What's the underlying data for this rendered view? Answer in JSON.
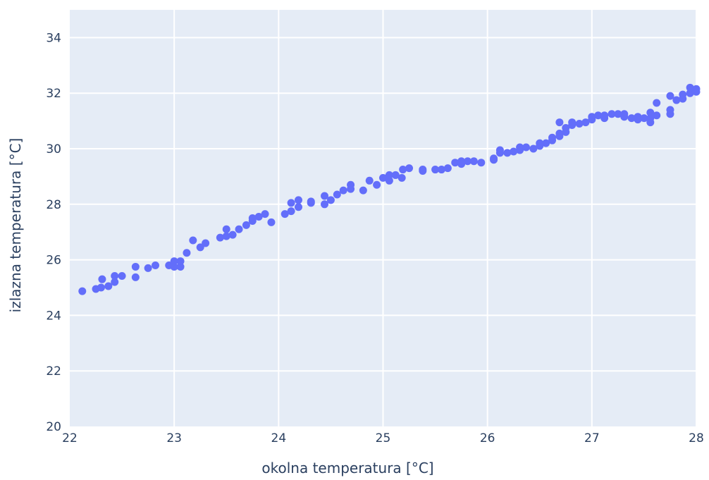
{
  "chart_data": {
    "type": "scatter",
    "xlabel": "okolna temperatura [°C]",
    "ylabel": "izlazna temperatura [°C]",
    "xlim": [
      22,
      28
    ],
    "ylim": [
      20,
      35
    ],
    "xticks": [
      22,
      23,
      24,
      25,
      26,
      27,
      28
    ],
    "yticks": [
      20,
      22,
      24,
      26,
      28,
      30,
      32,
      34
    ],
    "grid": true,
    "colors": {
      "marker": "#636efa",
      "plot_bg": "#e5ecf6",
      "grid": "#ffffff",
      "text": "#2a3f5f"
    },
    "points": [
      [
        22.12,
        24.87
      ],
      [
        22.25,
        24.95
      ],
      [
        22.3,
        25.0
      ],
      [
        22.31,
        25.3
      ],
      [
        22.37,
        25.05
      ],
      [
        22.43,
        25.2
      ],
      [
        22.43,
        25.42
      ],
      [
        22.5,
        25.42
      ],
      [
        22.63,
        25.37
      ],
      [
        22.63,
        25.75
      ],
      [
        22.75,
        25.7
      ],
      [
        22.82,
        25.8
      ],
      [
        22.95,
        25.8
      ],
      [
        23.0,
        25.75
      ],
      [
        23.0,
        25.95
      ],
      [
        23.06,
        25.75
      ],
      [
        23.06,
        25.95
      ],
      [
        23.12,
        26.25
      ],
      [
        23.18,
        26.7
      ],
      [
        23.25,
        26.45
      ],
      [
        23.3,
        26.6
      ],
      [
        23.44,
        26.8
      ],
      [
        23.5,
        26.85
      ],
      [
        23.5,
        27.1
      ],
      [
        23.56,
        26.9
      ],
      [
        23.62,
        27.1
      ],
      [
        23.69,
        27.25
      ],
      [
        23.75,
        27.4
      ],
      [
        23.75,
        27.5
      ],
      [
        23.81,
        27.55
      ],
      [
        23.87,
        27.65
      ],
      [
        23.93,
        27.35
      ],
      [
        24.06,
        27.65
      ],
      [
        24.12,
        27.75
      ],
      [
        24.12,
        28.05
      ],
      [
        24.19,
        27.9
      ],
      [
        24.19,
        28.15
      ],
      [
        24.31,
        28.05
      ],
      [
        24.31,
        28.1
      ],
      [
        24.44,
        28.0
      ],
      [
        24.44,
        28.3
      ],
      [
        24.5,
        28.15
      ],
      [
        24.56,
        28.35
      ],
      [
        24.62,
        28.5
      ],
      [
        24.69,
        28.55
      ],
      [
        24.69,
        28.7
      ],
      [
        24.81,
        28.5
      ],
      [
        24.87,
        28.85
      ],
      [
        24.94,
        28.7
      ],
      [
        25.0,
        28.95
      ],
      [
        25.06,
        28.85
      ],
      [
        25.06,
        29.05
      ],
      [
        25.12,
        29.05
      ],
      [
        25.18,
        28.95
      ],
      [
        25.19,
        29.25
      ],
      [
        25.25,
        29.3
      ],
      [
        25.38,
        29.2
      ],
      [
        25.38,
        29.25
      ],
      [
        25.5,
        29.25
      ],
      [
        25.56,
        29.25
      ],
      [
        25.62,
        29.3
      ],
      [
        25.69,
        29.5
      ],
      [
        25.75,
        29.45
      ],
      [
        25.75,
        29.55
      ],
      [
        25.81,
        29.55
      ],
      [
        25.87,
        29.55
      ],
      [
        25.94,
        29.5
      ],
      [
        26.06,
        29.6
      ],
      [
        26.06,
        29.65
      ],
      [
        26.12,
        29.85
      ],
      [
        26.12,
        29.95
      ],
      [
        26.19,
        29.85
      ],
      [
        26.25,
        29.9
      ],
      [
        26.31,
        29.95
      ],
      [
        26.31,
        30.05
      ],
      [
        26.37,
        30.05
      ],
      [
        26.44,
        30.0
      ],
      [
        26.5,
        30.1
      ],
      [
        26.5,
        30.2
      ],
      [
        26.56,
        30.2
      ],
      [
        26.62,
        30.3
      ],
      [
        26.62,
        30.4
      ],
      [
        26.69,
        30.45
      ],
      [
        26.69,
        30.55
      ],
      [
        26.69,
        30.95
      ],
      [
        26.75,
        30.6
      ],
      [
        26.75,
        30.75
      ],
      [
        26.81,
        30.85
      ],
      [
        26.81,
        30.95
      ],
      [
        26.88,
        30.9
      ],
      [
        26.94,
        30.95
      ],
      [
        27.0,
        31.05
      ],
      [
        27.0,
        31.15
      ],
      [
        27.06,
        31.2
      ],
      [
        27.12,
        31.1
      ],
      [
        27.12,
        31.2
      ],
      [
        27.19,
        31.25
      ],
      [
        27.25,
        31.25
      ],
      [
        27.31,
        31.15
      ],
      [
        27.31,
        31.25
      ],
      [
        27.38,
        31.1
      ],
      [
        27.44,
        31.05
      ],
      [
        27.44,
        31.15
      ],
      [
        27.5,
        31.1
      ],
      [
        27.56,
        30.95
      ],
      [
        27.56,
        31.1
      ],
      [
        27.56,
        31.3
      ],
      [
        27.62,
        31.2
      ],
      [
        27.62,
        31.65
      ],
      [
        27.75,
        31.25
      ],
      [
        27.75,
        31.4
      ],
      [
        27.75,
        31.9
      ],
      [
        27.81,
        31.75
      ],
      [
        27.87,
        31.8
      ],
      [
        27.87,
        31.95
      ],
      [
        27.94,
        32.0
      ],
      [
        27.94,
        32.2
      ],
      [
        28.0,
        32.05
      ],
      [
        28.0,
        32.15
      ]
    ]
  }
}
